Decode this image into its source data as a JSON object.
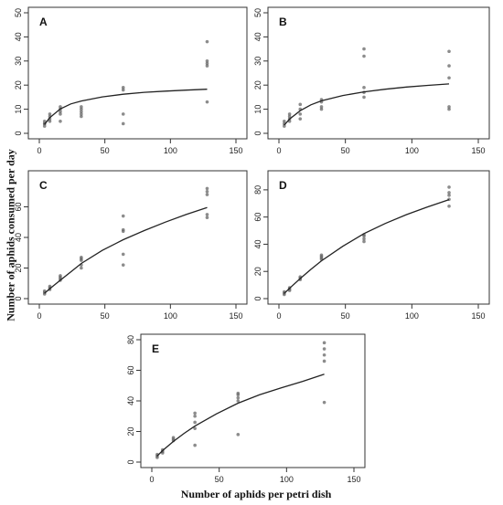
{
  "figure": {
    "ylabel": "Number of aphids consumed per day",
    "xlabel": "Number of aphids per petri dish"
  },
  "chart_data": [
    {
      "type": "scatter",
      "panel": "A",
      "xlim": [
        0,
        150
      ],
      "ylim": [
        0,
        50
      ],
      "xticks": [
        0,
        50,
        100,
        150
      ],
      "yticks": [
        0,
        10,
        20,
        30,
        40,
        50
      ],
      "points": [
        [
          4,
          3
        ],
        [
          4,
          4
        ],
        [
          4,
          4
        ],
        [
          4,
          5
        ],
        [
          8,
          5
        ],
        [
          8,
          6
        ],
        [
          8,
          7
        ],
        [
          8,
          8
        ],
        [
          16,
          5
        ],
        [
          16,
          8
        ],
        [
          16,
          9
        ],
        [
          16,
          10
        ],
        [
          16,
          11
        ],
        [
          32,
          7
        ],
        [
          32,
          8
        ],
        [
          32,
          9
        ],
        [
          32,
          10
        ],
        [
          32,
          11
        ],
        [
          64,
          4
        ],
        [
          64,
          8
        ],
        [
          64,
          18
        ],
        [
          64,
          19
        ],
        [
          128,
          13
        ],
        [
          128,
          28
        ],
        [
          128,
          29
        ],
        [
          128,
          30
        ],
        [
          128,
          38
        ]
      ],
      "curve": [
        [
          4,
          3.7
        ],
        [
          8,
          6.5
        ],
        [
          16,
          10.1
        ],
        [
          24,
          12.2
        ],
        [
          32,
          13.4
        ],
        [
          48,
          15.1
        ],
        [
          64,
          16.2
        ],
        [
          80,
          17
        ],
        [
          96,
          17.5
        ],
        [
          112,
          17.9
        ],
        [
          128,
          18.3
        ]
      ]
    },
    {
      "type": "scatter",
      "panel": "B",
      "xlim": [
        0,
        150
      ],
      "ylim": [
        0,
        50
      ],
      "xticks": [
        0,
        50,
        100,
        150
      ],
      "yticks": [
        0,
        10,
        20,
        30,
        40,
        50
      ],
      "points": [
        [
          4,
          3
        ],
        [
          4,
          4
        ],
        [
          4,
          5
        ],
        [
          8,
          5
        ],
        [
          8,
          6
        ],
        [
          8,
          7
        ],
        [
          8,
          8
        ],
        [
          16,
          6
        ],
        [
          16,
          8
        ],
        [
          16,
          10
        ],
        [
          16,
          12
        ],
        [
          32,
          10
        ],
        [
          32,
          11
        ],
        [
          32,
          13
        ],
        [
          32,
          14
        ],
        [
          64,
          15
        ],
        [
          64,
          17
        ],
        [
          64,
          19
        ],
        [
          64,
          32
        ],
        [
          64,
          35
        ],
        [
          128,
          10
        ],
        [
          128,
          11
        ],
        [
          128,
          23
        ],
        [
          128,
          28
        ],
        [
          128,
          34
        ]
      ],
      "curve": [
        [
          4,
          3.4
        ],
        [
          8,
          5.9
        ],
        [
          16,
          9.4
        ],
        [
          24,
          11.8
        ],
        [
          32,
          13.5
        ],
        [
          48,
          15.7
        ],
        [
          64,
          17.2
        ],
        [
          80,
          18.3
        ],
        [
          96,
          19.2
        ],
        [
          112,
          19.9
        ],
        [
          128,
          20.5
        ]
      ]
    },
    {
      "type": "scatter",
      "panel": "C",
      "xlim": [
        0,
        150
      ],
      "ylim": [
        0,
        80
      ],
      "xticks": [
        0,
        50,
        100,
        150
      ],
      "yticks": [
        0,
        20,
        40,
        60
      ],
      "points": [
        [
          4,
          3
        ],
        [
          4,
          4
        ],
        [
          4,
          5
        ],
        [
          8,
          6
        ],
        [
          8,
          7
        ],
        [
          8,
          8
        ],
        [
          16,
          12
        ],
        [
          16,
          13
        ],
        [
          16,
          14
        ],
        [
          16,
          15
        ],
        [
          32,
          20
        ],
        [
          32,
          22
        ],
        [
          32,
          25
        ],
        [
          32,
          26
        ],
        [
          32,
          27
        ],
        [
          64,
          22
        ],
        [
          64,
          29
        ],
        [
          64,
          44
        ],
        [
          64,
          45
        ],
        [
          64,
          54
        ],
        [
          128,
          53
        ],
        [
          128,
          55
        ],
        [
          128,
          68
        ],
        [
          128,
          70
        ],
        [
          128,
          72
        ]
      ],
      "curve": [
        [
          4,
          3.5
        ],
        [
          8,
          6.5
        ],
        [
          16,
          12
        ],
        [
          24,
          17.5
        ],
        [
          32,
          23
        ],
        [
          48,
          31.5
        ],
        [
          64,
          38.5
        ],
        [
          80,
          44.5
        ],
        [
          96,
          50
        ],
        [
          112,
          55
        ],
        [
          128,
          59.5
        ]
      ]
    },
    {
      "type": "scatter",
      "panel": "D",
      "xlim": [
        0,
        150
      ],
      "ylim": [
        0,
        90
      ],
      "xticks": [
        0,
        50,
        100,
        150
      ],
      "yticks": [
        0,
        20,
        40,
        60,
        80
      ],
      "points": [
        [
          4,
          3
        ],
        [
          4,
          4
        ],
        [
          4,
          5
        ],
        [
          8,
          6
        ],
        [
          8,
          7
        ],
        [
          8,
          8
        ],
        [
          16,
          14
        ],
        [
          16,
          15
        ],
        [
          16,
          16
        ],
        [
          32,
          29
        ],
        [
          32,
          30
        ],
        [
          32,
          31
        ],
        [
          32,
          32
        ],
        [
          64,
          42
        ],
        [
          64,
          44
        ],
        [
          64,
          46
        ],
        [
          64,
          47
        ],
        [
          128,
          68
        ],
        [
          128,
          73
        ],
        [
          128,
          76
        ],
        [
          128,
          78
        ],
        [
          128,
          82
        ]
      ],
      "curve": [
        [
          4,
          3.8
        ],
        [
          8,
          7.6
        ],
        [
          16,
          14.8
        ],
        [
          24,
          21.5
        ],
        [
          32,
          27.8
        ],
        [
          48,
          38.5
        ],
        [
          64,
          47.8
        ],
        [
          80,
          55.3
        ],
        [
          96,
          61.8
        ],
        [
          112,
          67.5
        ],
        [
          128,
          72.8
        ]
      ]
    },
    {
      "type": "scatter",
      "panel": "E",
      "xlim": [
        0,
        150
      ],
      "ylim": [
        0,
        80
      ],
      "xticks": [
        0,
        50,
        100,
        150
      ],
      "yticks": [
        0,
        20,
        40,
        60,
        80
      ],
      "points": [
        [
          4,
          3
        ],
        [
          4,
          4
        ],
        [
          4,
          5
        ],
        [
          8,
          6
        ],
        [
          8,
          7
        ],
        [
          8,
          8
        ],
        [
          16,
          14
        ],
        [
          16,
          15
        ],
        [
          16,
          16
        ],
        [
          32,
          11
        ],
        [
          32,
          22
        ],
        [
          32,
          26
        ],
        [
          32,
          30
        ],
        [
          32,
          32
        ],
        [
          64,
          18
        ],
        [
          64,
          40
        ],
        [
          64,
          42
        ],
        [
          64,
          44
        ],
        [
          64,
          45
        ],
        [
          128,
          39
        ],
        [
          128,
          66
        ],
        [
          128,
          70
        ],
        [
          128,
          74
        ],
        [
          128,
          78
        ]
      ],
      "curve": [
        [
          4,
          4
        ],
        [
          8,
          7.5
        ],
        [
          16,
          13.5
        ],
        [
          24,
          18.8
        ],
        [
          32,
          23.5
        ],
        [
          48,
          31.5
        ],
        [
          64,
          38.5
        ],
        [
          80,
          44
        ],
        [
          96,
          48.5
        ],
        [
          112,
          52.8
        ],
        [
          128,
          57.5
        ]
      ]
    }
  ]
}
